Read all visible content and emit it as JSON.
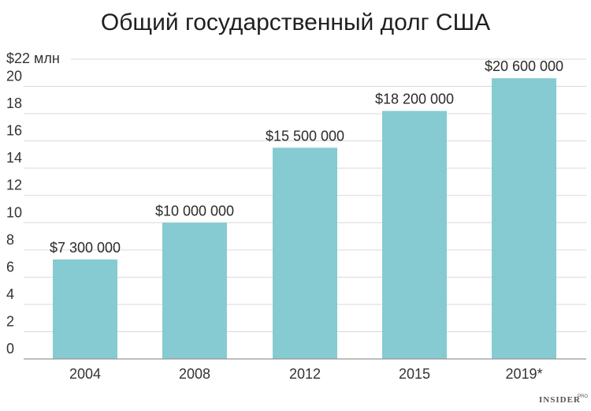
{
  "chart_data": {
    "type": "bar",
    "title": "Общий государственный долг США",
    "y_unit_label": "$22 млн",
    "categories": [
      "2004",
      "2008",
      "2012",
      "2015",
      "2019*"
    ],
    "values": [
      7.3,
      10.0,
      15.5,
      18.2,
      20.6
    ],
    "data_labels": [
      "$7 300 000",
      "$10 000 000",
      "$15 500 000",
      "$18 200 000",
      "$20 600 000"
    ],
    "yticks": [
      0,
      2,
      4,
      6,
      8,
      10,
      12,
      14,
      16,
      18,
      20
    ],
    "ytick_labels": [
      "0",
      "2",
      "4",
      "6",
      "8",
      "10",
      "12",
      "14",
      "16",
      "18",
      "20"
    ],
    "ylim": [
      0,
      22
    ],
    "grid": true,
    "colors": {
      "bar": "#86cbd1",
      "grid": "#d9d9d9",
      "axis": "#999999"
    }
  },
  "branding": {
    "logo_text": "INSIDER",
    "logo_sup": "PRO"
  }
}
